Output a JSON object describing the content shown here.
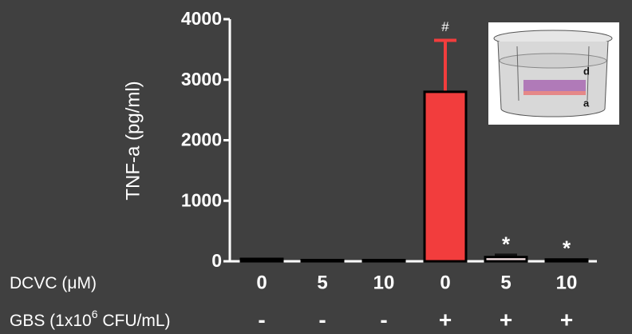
{
  "chart_data": {
    "type": "bar",
    "y_label": "TNF-a (pg/ml)",
    "ylim": [
      0,
      4000
    ],
    "yticks": [
      0,
      1000,
      2000,
      3000,
      4000
    ],
    "values": [
      40,
      20,
      20,
      2800,
      70,
      30
    ],
    "errors": [
      null,
      null,
      null,
      850,
      30,
      null
    ],
    "colors": [
      "#111111",
      "#111111",
      "#111111",
      "#f23d3d",
      "#fde8ea",
      "#111111"
    ],
    "error_colors": [
      null,
      null,
      null,
      "#f23d3d",
      "#111111",
      null
    ],
    "annotations": [
      null,
      null,
      null,
      "#",
      "*",
      "*"
    ],
    "rows": [
      {
        "label": [
          "DCVC (",
          "μ",
          "M)"
        ],
        "values": [
          "0",
          "5",
          "10",
          "0",
          "5",
          "10"
        ]
      },
      {
        "label": [
          "GBS (1x10",
          "6",
          " CFU/mL)"
        ],
        "values": [
          "-",
          "-",
          "-",
          "+",
          "+",
          "+"
        ]
      }
    ],
    "inset_labels": [
      "d",
      "a"
    ]
  }
}
